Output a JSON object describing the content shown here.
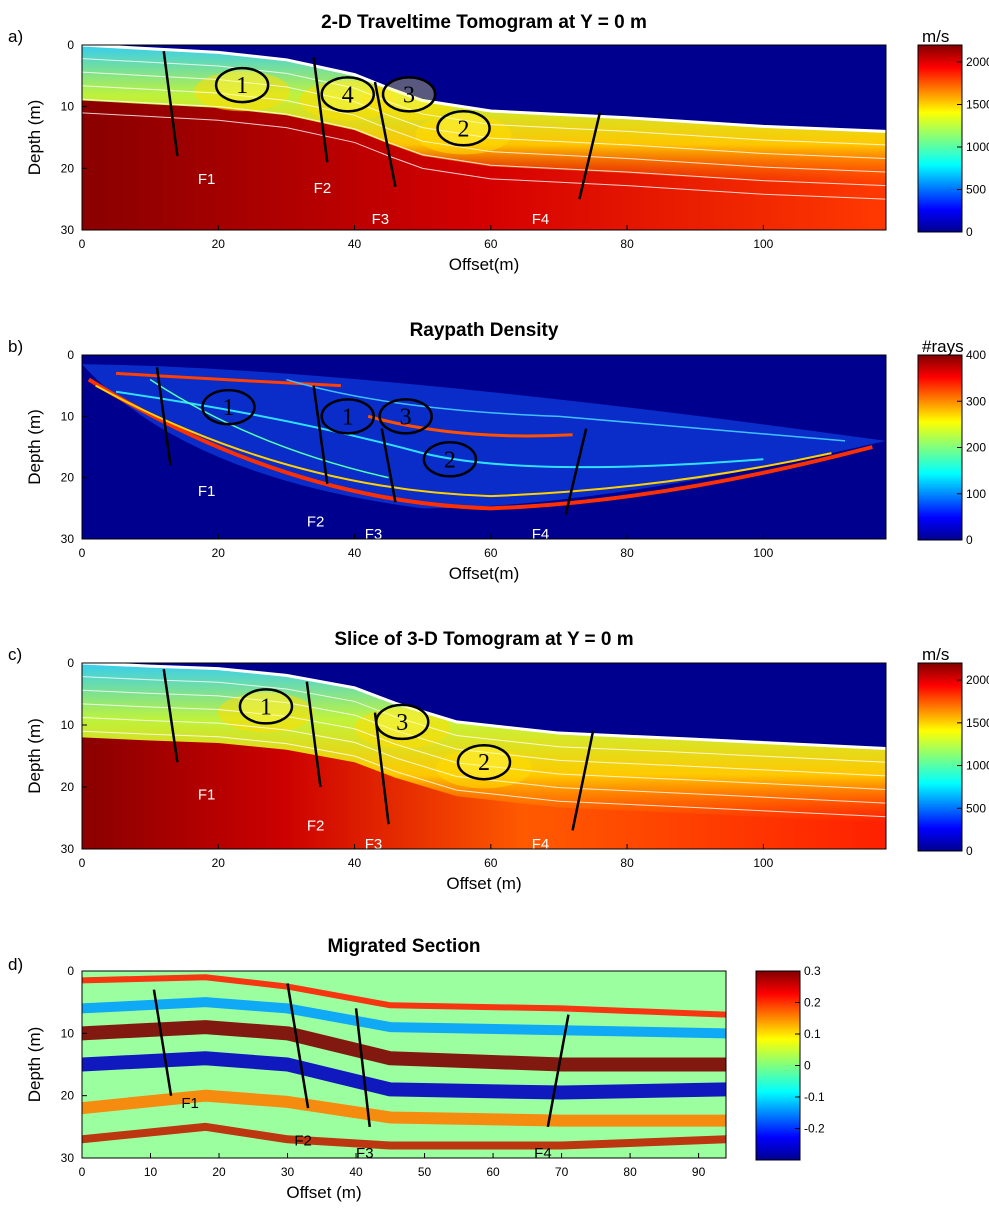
{
  "chart_data": [
    {
      "panel_label": "a)",
      "type": "heatmap",
      "title": "2-D Traveltime Tomogram at Y = 0 m",
      "xlabel": "Offset(m)",
      "ylabel": "Depth (m)",
      "xlim": [
        0,
        118
      ],
      "ylim": [
        30,
        0
      ],
      "xticks": [
        0,
        20,
        40,
        60,
        80,
        100
      ],
      "yticks": [
        0,
        10,
        20,
        30
      ],
      "colorbar": {
        "label": "m/s",
        "range": [
          0,
          2200
        ],
        "ticks": [
          0,
          500,
          1000,
          1500,
          2000
        ],
        "colormap": "jet"
      },
      "surface_depth": [
        [
          0,
          0
        ],
        [
          10,
          0.6
        ],
        [
          20,
          1.2
        ],
        [
          30,
          2.4
        ],
        [
          40,
          4.8
        ],
        [
          45,
          7
        ],
        [
          50,
          9
        ],
        [
          60,
          10.7
        ],
        [
          80,
          11.8
        ],
        [
          100,
          13.2
        ],
        [
          118,
          14
        ]
      ],
      "faults": [
        {
          "label": "F1",
          "top": [
            12,
            1
          ],
          "bottom": [
            14,
            18
          ],
          "label_pos": [
            17,
            22.5
          ]
        },
        {
          "label": "F2",
          "top": [
            34,
            2
          ],
          "bottom": [
            36,
            19
          ],
          "label_pos": [
            34,
            24
          ]
        },
        {
          "label": "F3",
          "top": [
            43,
            6
          ],
          "bottom": [
            46,
            23
          ],
          "label_pos": [
            42.5,
            29
          ]
        },
        {
          "label": "F4",
          "top": [
            76,
            11
          ],
          "bottom": [
            73,
            25
          ],
          "label_pos": [
            66,
            29
          ]
        }
      ],
      "zones": [
        {
          "label": "1",
          "x": 23.5,
          "y": 6.5
        },
        {
          "label": "4",
          "x": 39,
          "y": 8
        },
        {
          "label": "3",
          "x": 48,
          "y": 8
        },
        {
          "label": "2",
          "x": 56,
          "y": 13.5
        }
      ]
    },
    {
      "panel_label": "b)",
      "type": "heatmap",
      "title": "Raypath Density",
      "xlabel": "Offset(m)",
      "ylabel": "Depth (m)",
      "xlim": [
        0,
        118
      ],
      "ylim": [
        30,
        0
      ],
      "xticks": [
        0,
        20,
        40,
        60,
        80,
        100
      ],
      "yticks": [
        0,
        10,
        20,
        30
      ],
      "colorbar": {
        "label": "#rays",
        "range": [
          0,
          400
        ],
        "ticks": [
          0,
          100,
          200,
          300,
          400
        ],
        "colormap": "jet"
      },
      "faults": [
        {
          "label": "F1",
          "top": [
            11,
            2
          ],
          "bottom": [
            13,
            18
          ],
          "label_pos": [
            17,
            23
          ]
        },
        {
          "label": "F2",
          "top": [
            34,
            5
          ],
          "bottom": [
            36,
            21
          ],
          "label_pos": [
            33,
            28
          ]
        },
        {
          "label": "F3",
          "top": [
            44,
            12
          ],
          "bottom": [
            46,
            24
          ],
          "label_pos": [
            41.5,
            30
          ]
        },
        {
          "label": "F4",
          "top": [
            74,
            12
          ],
          "bottom": [
            71,
            26
          ],
          "label_pos": [
            66,
            30
          ]
        }
      ],
      "zones": [
        {
          "label": "1",
          "x": 21.5,
          "y": 8.5
        },
        {
          "label": "1",
          "x": 39,
          "y": 10
        },
        {
          "label": "3",
          "x": 47.5,
          "y": 10
        },
        {
          "label": "2",
          "x": 54,
          "y": 17
        }
      ]
    },
    {
      "panel_label": "c)",
      "type": "heatmap",
      "title": "Slice of 3-D Tomogram at Y = 0 m",
      "xlabel": "Offset (m)",
      "ylabel": "Depth (m)",
      "xlim": [
        0,
        118
      ],
      "ylim": [
        30,
        0
      ],
      "xticks": [
        0,
        20,
        40,
        60,
        80,
        100
      ],
      "yticks": [
        0,
        10,
        20,
        30
      ],
      "colorbar": {
        "label": "m/s",
        "range": [
          0,
          2200
        ],
        "ticks": [
          0,
          500,
          1000,
          1500,
          2000
        ],
        "colormap": "jet"
      },
      "surface_depth": [
        [
          0,
          0
        ],
        [
          10,
          0.5
        ],
        [
          20,
          0.9
        ],
        [
          30,
          2
        ],
        [
          40,
          4
        ],
        [
          46,
          6.5
        ],
        [
          55,
          9.5
        ],
        [
          70,
          11.3
        ],
        [
          90,
          12.3
        ],
        [
          118,
          13.8
        ]
      ],
      "faults": [
        {
          "label": "F1",
          "top": [
            12,
            1
          ],
          "bottom": [
            14,
            16
          ],
          "label_pos": [
            17,
            22
          ]
        },
        {
          "label": "F2",
          "top": [
            33,
            3
          ],
          "bottom": [
            35,
            20
          ],
          "label_pos": [
            33,
            27
          ]
        },
        {
          "label": "F3",
          "top": [
            43,
            8
          ],
          "bottom": [
            45,
            26
          ],
          "label_pos": [
            41.5,
            30
          ]
        },
        {
          "label": "F4",
          "top": [
            75,
            11
          ],
          "bottom": [
            72,
            27
          ],
          "label_pos": [
            66,
            30
          ]
        }
      ],
      "zones": [
        {
          "label": "1",
          "x": 27,
          "y": 7
        },
        {
          "label": "3",
          "x": 47,
          "y": 9.5
        },
        {
          "label": "2",
          "x": 59,
          "y": 16
        }
      ]
    },
    {
      "panel_label": "d)",
      "type": "heatmap",
      "title": "Migrated Section",
      "xlabel": "Offset (m)",
      "ylabel": "Depth (m)",
      "xlim": [
        0,
        94
      ],
      "ylim": [
        30,
        0
      ],
      "xticks": [
        0,
        10,
        20,
        30,
        40,
        50,
        60,
        70,
        80,
        90
      ],
      "yticks": [
        0,
        10,
        20,
        30
      ],
      "colorbar": {
        "label": "",
        "range": [
          -0.3,
          0.3
        ],
        "ticks": [
          -0.2,
          -0.1,
          0,
          0.1,
          0.2,
          0.3
        ],
        "colormap": "jet"
      },
      "faults": [
        {
          "label": "F1",
          "top": [
            10.5,
            3
          ],
          "bottom": [
            13,
            20
          ],
          "label_pos": [
            14.5,
            22
          ]
        },
        {
          "label": "F2",
          "top": [
            30,
            2
          ],
          "bottom": [
            33,
            22
          ],
          "label_pos": [
            31,
            28
          ]
        },
        {
          "label": "F3",
          "top": [
            40,
            6
          ],
          "bottom": [
            42,
            25
          ],
          "label_pos": [
            40,
            30
          ]
        },
        {
          "label": "F4",
          "top": [
            71,
            7
          ],
          "bottom": [
            68,
            25
          ],
          "label_pos": [
            66,
            30
          ]
        }
      ],
      "zones": []
    }
  ]
}
